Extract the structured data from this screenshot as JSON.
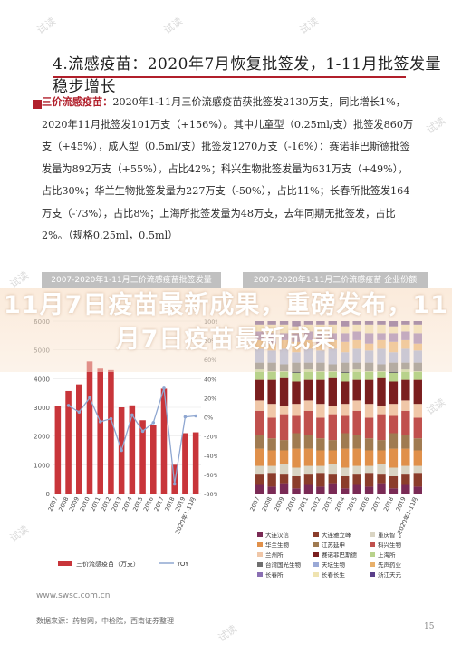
{
  "watermark": "试读",
  "title": "4.流感疫苗：2020年7月恢复批签发，1-11月批签发量稳步增长",
  "paragraph_lead": "三价流感疫苗：",
  "paragraph_body": "2020年1-11月三价流感疫苗获批签发2130万支，同比增长1%，2020年11月批签发101万支（+156%）。其中儿童型（0.25ml/支）批签发860万支（+45%），成人型（0.5ml/支）批签发1270万支（-16%）：赛诺菲巴斯德批签发量为892万支（+55%），占比42%；科兴生物批签发量为631万支（+49%），占比30%；华兰生物批签发量为227万支（-50%），占比11%；长春所批签发164万支（-73%），占比8%；上海所批签发量为48万支，去年同期无批签发，占比2%。（规格0.25ml，0.5ml）",
  "left_panel_title": "2007-2020年1-11月三价流感疫苗批签发量",
  "right_panel_title": "2007-2020年1-11月三价流感疫苗 企业份额",
  "banner": "11月7日疫苗最新成果，重磅发布，11月7日疫苗最新成果",
  "footer_url": "www.swsc.com.cn",
  "footer_source": "数据来源：药智网，中检院，西南证券整理",
  "page_number": "15",
  "colors": {
    "accent": "#b11f2b",
    "bar": "#c8353a",
    "line": "#8fa7d1"
  },
  "chart_data": [
    {
      "type": "bar",
      "categories": [
        "2007",
        "2008",
        "2009",
        "2010",
        "2011",
        "2012",
        "2013",
        "2014",
        "2015",
        "2016",
        "2017",
        "2018",
        "2019",
        "2020年1-11月"
      ],
      "series": [
        {
          "name": "三价流感疫苗（万支）",
          "type": "bar",
          "axis": "left",
          "values": [
            3050,
            3570,
            3800,
            4600,
            4350,
            4300,
            3000,
            3070,
            2550,
            2400,
            3650,
            1000,
            2100,
            2130
          ]
        },
        {
          "name": "YOY",
          "type": "line",
          "axis": "right",
          "values": [
            null,
            12,
            5,
            20,
            -5,
            -2,
            -35,
            2,
            -15,
            -6,
            30,
            -70,
            0,
            1
          ]
        }
      ],
      "ylim_left": [
        0,
        6000
      ],
      "yticks_left": [
        "0",
        "1000",
        "2000",
        "3000",
        "4000",
        "5000",
        "6000"
      ],
      "ylim_right": [
        -80,
        100
      ],
      "yticks_right": [
        "-80%",
        "-60%",
        "-40%",
        "-20%",
        "0%",
        "20%",
        "40%",
        "60%",
        "80%",
        "100%"
      ],
      "legend": "bottom"
    },
    {
      "type": "bar",
      "stacked": "percent",
      "categories": [
        "2007",
        "2008",
        "2009",
        "2010",
        "2011",
        "2012",
        "2013",
        "2014",
        "2015",
        "2016",
        "2017",
        "2018",
        "2019",
        "2020年1-11月"
      ],
      "series": [
        {
          "name": "大连汉信",
          "color": "#7a2a55"
        },
        {
          "name": "大连雅立峰",
          "color": "#8b3d2b"
        },
        {
          "name": "重庆智飞",
          "color": "#d9d4c3"
        },
        {
          "name": "华兰生物",
          "color": "#e0904a"
        },
        {
          "name": "江苏延申",
          "color": "#a07b51"
        },
        {
          "name": "科兴生物",
          "color": "#c0504d"
        },
        {
          "name": "兰州所",
          "color": "#f0c7a8"
        },
        {
          "name": "赛诺菲巴斯德",
          "color": "#7a1f1f"
        },
        {
          "name": "上海所",
          "color": "#b8d28b"
        },
        {
          "name": "台湾国光生物",
          "color": "#6f6f6f"
        },
        {
          "name": "天坛生物",
          "color": "#9aa9d6"
        },
        {
          "name": "先声药业",
          "color": "#e8b06a"
        },
        {
          "name": "长春所",
          "color": "#8a6fb3"
        },
        {
          "name": "长春长生",
          "color": "#efe3b0"
        },
        {
          "name": "浙江天元",
          "color": "#5a3f8a"
        }
      ],
      "legend": "bottom"
    }
  ]
}
